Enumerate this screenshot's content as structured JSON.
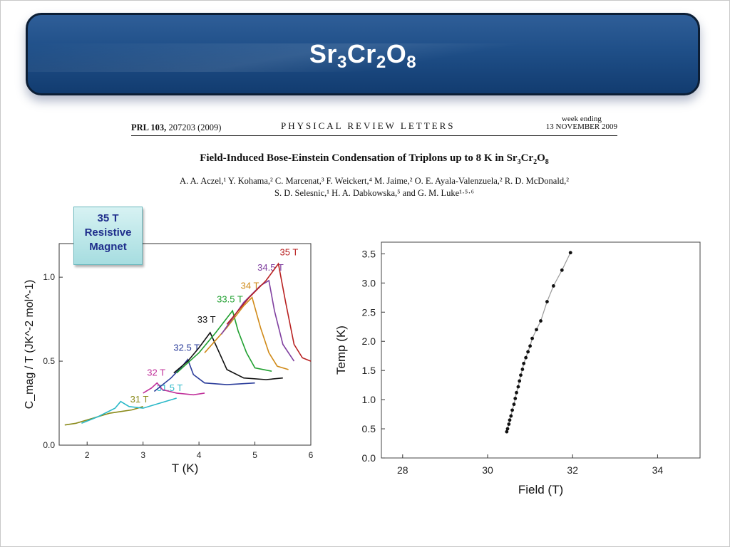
{
  "slide": {
    "title_parts": {
      "a": "Sr",
      "b": "3",
      "c": "Cr",
      "d": "2",
      "e": "O",
      "f": "8"
    },
    "badge_lines": [
      "35 T",
      "Resistive",
      "Magnet"
    ]
  },
  "paper": {
    "journal_ref_bold": "PRL 103,",
    "journal_ref_rest": " 207203 (2009)",
    "journal_name": "PHYSICAL REVIEW LETTERS",
    "week_line1": "week ending",
    "week_line2": "13 NOVEMBER 2009",
    "title_text": "Field-Induced Bose-Einstein Condensation of Triplons up to 8 K in Sr",
    "title_sub1": "3",
    "title_cr": "Cr",
    "title_sub2": "2",
    "title_o": "O",
    "title_sub3": "8",
    "authors_line1": "A. A. Aczel,¹ Y. Kohama,² C. Marcenat,³ F. Weickert,⁴ M. Jaime,² O. E. Ayala-Valenzuela,² R. D. McDonald,²",
    "authors_line2": "S. D. Selesnic,¹ H. A. Dabkowska,⁵ and G. M. Luke¹·⁵·⁶"
  },
  "chart_data": [
    {
      "type": "line",
      "xlabel": "T (K)",
      "ylabel": "C_mag / T (JK^-2 mol^-1)",
      "xlim": [
        1.5,
        6
      ],
      "ylim": [
        0,
        1.2
      ],
      "xticks": [
        2,
        3,
        4,
        5,
        6
      ],
      "yticks": [
        0.0,
        0.5,
        1.0
      ],
      "series": [
        {
          "name": "31 T",
          "color": "#8a8a1a",
          "points": [
            [
              1.6,
              0.12
            ],
            [
              1.8,
              0.13
            ],
            [
              2.0,
              0.15
            ],
            [
              2.2,
              0.17
            ],
            [
              2.4,
              0.19
            ],
            [
              2.6,
              0.2
            ],
            [
              2.8,
              0.21
            ],
            [
              3.0,
              0.23
            ]
          ]
        },
        {
          "name": "31.5 T",
          "color": "#2ab8c8",
          "points": [
            [
              1.9,
              0.13
            ],
            [
              2.2,
              0.17
            ],
            [
              2.5,
              0.22
            ],
            [
              2.6,
              0.26
            ],
            [
              2.75,
              0.23
            ],
            [
              3.0,
              0.22
            ],
            [
              3.2,
              0.24
            ],
            [
              3.6,
              0.28
            ]
          ]
        },
        {
          "name": "32 T",
          "color": "#c0309a",
          "points": [
            [
              3.0,
              0.31
            ],
            [
              3.15,
              0.34
            ],
            [
              3.25,
              0.37
            ],
            [
              3.35,
              0.33
            ],
            [
              3.6,
              0.31
            ],
            [
              3.9,
              0.3
            ],
            [
              4.1,
              0.31
            ]
          ]
        },
        {
          "name": "32.5 T",
          "color": "#2a3c9a",
          "points": [
            [
              3.2,
              0.32
            ],
            [
              3.5,
              0.4
            ],
            [
              3.7,
              0.47
            ],
            [
              3.8,
              0.51
            ],
            [
              3.9,
              0.42
            ],
            [
              4.1,
              0.37
            ],
            [
              4.5,
              0.36
            ],
            [
              5.0,
              0.37
            ]
          ]
        },
        {
          "name": "33 T",
          "color": "#111111",
          "points": [
            [
              3.55,
              0.43
            ],
            [
              3.8,
              0.5
            ],
            [
              4.0,
              0.58
            ],
            [
              4.2,
              0.67
            ],
            [
              4.35,
              0.56
            ],
            [
              4.5,
              0.45
            ],
            [
              4.8,
              0.4
            ],
            [
              5.2,
              0.39
            ],
            [
              5.5,
              0.4
            ]
          ]
        },
        {
          "name": "33.5 T",
          "color": "#20a030",
          "points": [
            [
              3.6,
              0.43
            ],
            [
              4.0,
              0.55
            ],
            [
              4.3,
              0.67
            ],
            [
              4.6,
              0.8
            ],
            [
              4.7,
              0.68
            ],
            [
              4.85,
              0.55
            ],
            [
              5.0,
              0.46
            ],
            [
              5.3,
              0.44
            ]
          ]
        },
        {
          "name": "34 T",
          "color": "#d08a18",
          "points": [
            [
              4.1,
              0.55
            ],
            [
              4.5,
              0.7
            ],
            [
              4.8,
              0.83
            ],
            [
              4.95,
              0.88
            ],
            [
              5.1,
              0.7
            ],
            [
              5.25,
              0.55
            ],
            [
              5.4,
              0.47
            ],
            [
              5.6,
              0.45
            ]
          ]
        },
        {
          "name": "34.5 T",
          "color": "#8040a0",
          "points": [
            [
              4.4,
              0.66
            ],
            [
              4.8,
              0.85
            ],
            [
              5.1,
              0.95
            ],
            [
              5.25,
              0.98
            ],
            [
              5.35,
              0.8
            ],
            [
              5.5,
              0.6
            ],
            [
              5.7,
              0.5
            ]
          ]
        },
        {
          "name": "35 T",
          "color": "#b82020",
          "points": [
            [
              4.5,
              0.72
            ],
            [
              4.9,
              0.88
            ],
            [
              5.2,
              0.98
            ],
            [
              5.42,
              1.08
            ],
            [
              5.55,
              0.85
            ],
            [
              5.7,
              0.6
            ],
            [
              5.85,
              0.52
            ],
            [
              6.0,
              0.5
            ]
          ]
        }
      ]
    },
    {
      "type": "scatter",
      "xlabel": "Field (T)",
      "ylabel": "Temp (K)",
      "xlim": [
        27.5,
        35
      ],
      "ylim": [
        0.0,
        3.7
      ],
      "xticks": [
        28,
        30,
        32,
        34
      ],
      "yticks": [
        0.0,
        0.5,
        1.0,
        1.5,
        2.0,
        2.5,
        3.0,
        3.5
      ],
      "series": [
        {
          "name": "",
          "color": "#111111",
          "points": [
            [
              30.45,
              0.45
            ],
            [
              30.47,
              0.5
            ],
            [
              30.5,
              0.58
            ],
            [
              30.52,
              0.65
            ],
            [
              30.55,
              0.72
            ],
            [
              30.58,
              0.82
            ],
            [
              30.62,
              0.92
            ],
            [
              30.65,
              1.02
            ],
            [
              30.68,
              1.12
            ],
            [
              30.72,
              1.22
            ],
            [
              30.75,
              1.32
            ],
            [
              30.78,
              1.42
            ],
            [
              30.82,
              1.52
            ],
            [
              30.85,
              1.62
            ],
            [
              30.9,
              1.72
            ],
            [
              30.95,
              1.82
            ],
            [
              31.0,
              1.92
            ],
            [
              31.05,
              2.05
            ],
            [
              31.15,
              2.2
            ],
            [
              31.25,
              2.35
            ],
            [
              31.4,
              2.68
            ],
            [
              31.55,
              2.95
            ],
            [
              31.75,
              3.22
            ],
            [
              31.95,
              3.52
            ]
          ]
        }
      ]
    }
  ]
}
